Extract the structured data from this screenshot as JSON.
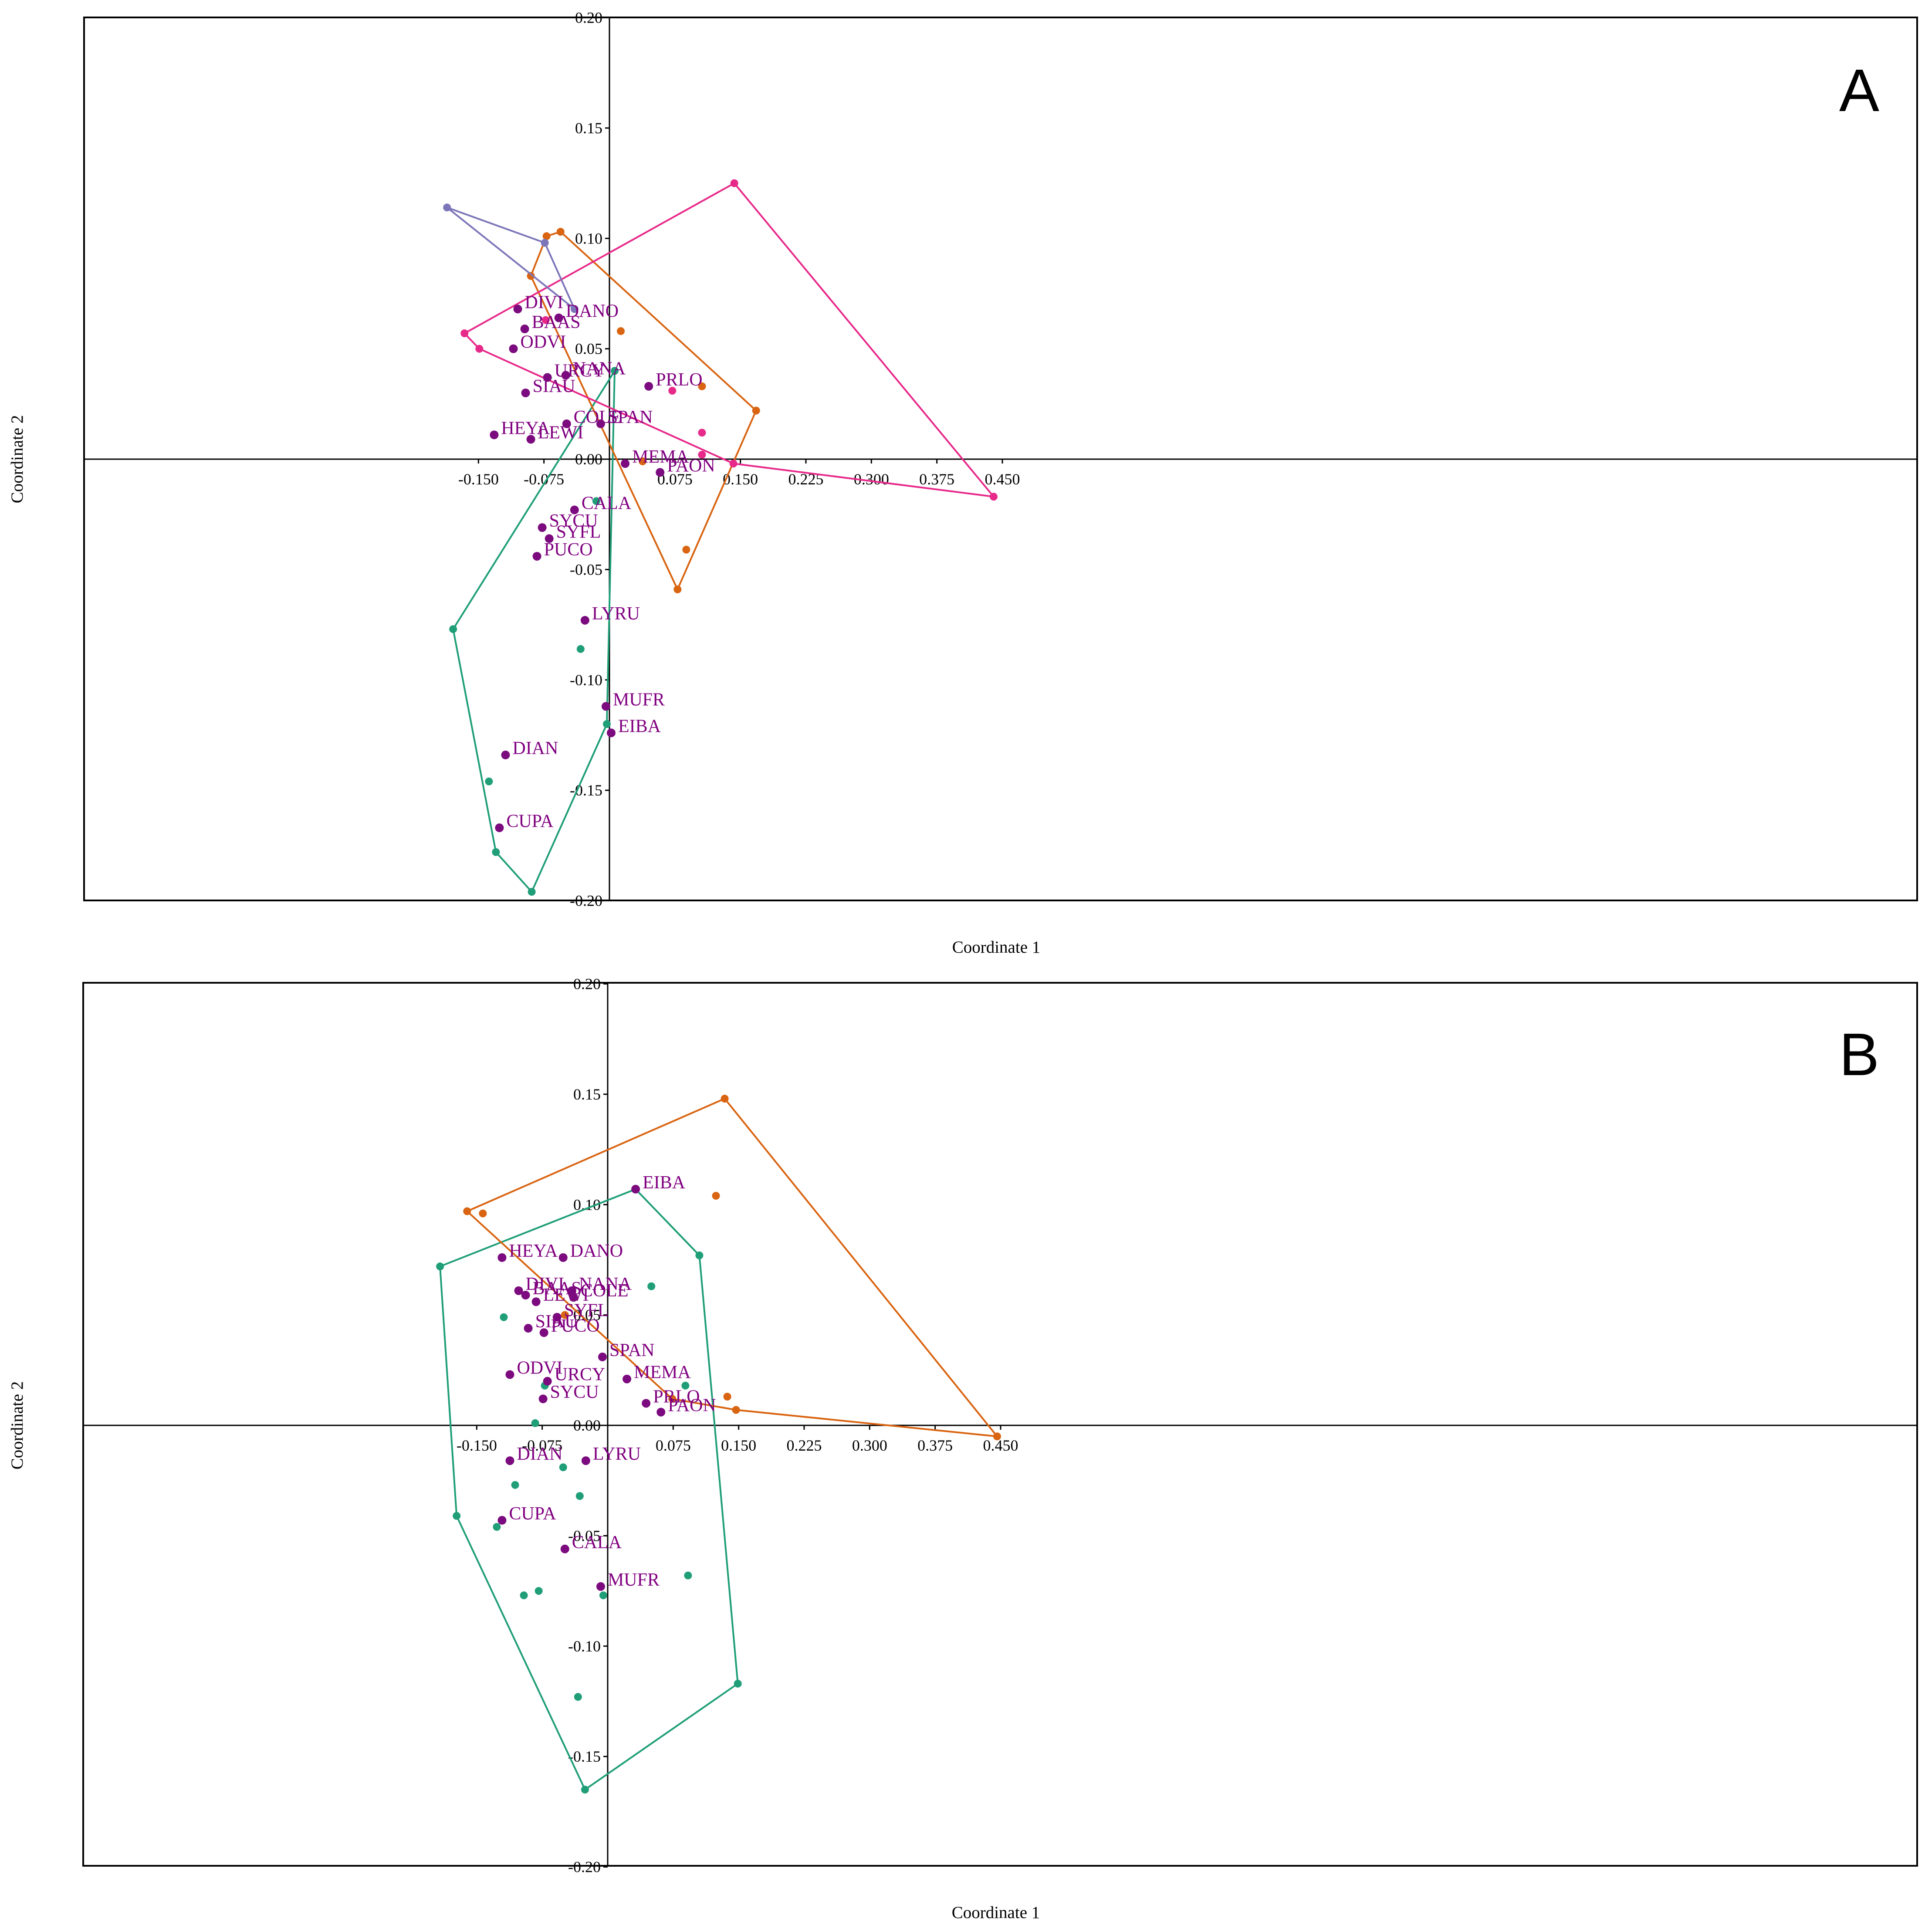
{
  "colors": {
    "species": "#7B0B7E",
    "species_label": "#800080",
    "green": "#1F9E77",
    "orange": "#D96411",
    "pink": "#E7298A",
    "lavender": "#7C76B9",
    "axis": "#000000"
  },
  "chart_data": [
    {
      "type": "scatter",
      "panel_label": "A",
      "xlabel": "Coordinate 1",
      "ylabel": "Coordinate 2",
      "xlim": [
        -0.2,
        0.5
      ],
      "ylim": [
        -0.2,
        0.2
      ],
      "x_ticks": [
        -0.15,
        -0.075,
        0.075,
        0.15,
        0.225,
        0.3,
        0.375,
        0.45
      ],
      "x_tick_labels": [
        "-0.150",
        "-0.075",
        "0.075",
        "0.150",
        "0.225",
        "0.300",
        "0.375",
        "0.450"
      ],
      "y_ticks": [
        -0.2,
        -0.15,
        -0.1,
        -0.05,
        0,
        0.05,
        0.1,
        0.15,
        0.2
      ],
      "y_tick_labels": [
        "-0.20",
        "-0.15",
        "-0.10",
        "-0.05",
        "0.00",
        "0.05",
        "0.10",
        "0.15",
        "0.20"
      ],
      "grid": false,
      "labeled_points": [
        {
          "label": "DIVI",
          "x": -0.105,
          "y": 0.068
        },
        {
          "label": "BAAS",
          "x": -0.097,
          "y": 0.059
        },
        {
          "label": "ODVI",
          "x": -0.11,
          "y": 0.05
        },
        {
          "label": "DANO",
          "x": -0.058,
          "y": 0.064
        },
        {
          "label": "URCY",
          "x": -0.071,
          "y": 0.037
        },
        {
          "label": "NANA",
          "x": -0.05,
          "y": 0.038
        },
        {
          "label": "SIAU",
          "x": -0.096,
          "y": 0.03
        },
        {
          "label": "HEYA",
          "x": -0.132,
          "y": 0.011
        },
        {
          "label": "LEWI",
          "x": -0.09,
          "y": 0.009
        },
        {
          "label": "COLE",
          "x": -0.049,
          "y": 0.016
        },
        {
          "label": "SPAN",
          "x": -0.01,
          "y": 0.016
        },
        {
          "label": "MEMA",
          "x": 0.018,
          "y": -0.002
        },
        {
          "label": "PRLO",
          "x": 0.045,
          "y": 0.033
        },
        {
          "label": "PAON",
          "x": 0.058,
          "y": -0.006
        },
        {
          "label": "CALA",
          "x": -0.04,
          "y": -0.023
        },
        {
          "label": "SYCU",
          "x": -0.077,
          "y": -0.031
        },
        {
          "label": "SYFL",
          "x": -0.069,
          "y": -0.036
        },
        {
          "label": "PUCO",
          "x": -0.083,
          "y": -0.044
        },
        {
          "label": "LYRU",
          "x": -0.028,
          "y": -0.073
        },
        {
          "label": "MUFR",
          "x": -0.004,
          "y": -0.112
        },
        {
          "label": "EIBA",
          "x": 0.002,
          "y": -0.124
        },
        {
          "label": "DIAN",
          "x": -0.119,
          "y": -0.134
        },
        {
          "label": "CUPA",
          "x": -0.126,
          "y": -0.167
        }
      ],
      "series": [
        {
          "color_key": "green",
          "hull": [
            [
              0.006,
              0.04
            ],
            [
              -0.003,
              -0.12
            ],
            [
              -0.089,
              -0.196
            ],
            [
              -0.13,
              -0.178
            ],
            [
              -0.179,
              -0.077
            ]
          ],
          "points": [
            [
              0.006,
              0.04
            ],
            [
              -0.015,
              -0.019
            ],
            [
              -0.033,
              -0.086
            ],
            [
              -0.003,
              -0.12
            ],
            [
              -0.089,
              -0.196
            ],
            [
              -0.13,
              -0.178
            ],
            [
              -0.138,
              -0.146
            ],
            [
              -0.179,
              -0.077
            ]
          ]
        },
        {
          "color_key": "orange",
          "hull": [
            [
              -0.072,
              0.101
            ],
            [
              -0.056,
              0.103
            ],
            [
              0.168,
              0.022
            ],
            [
              0.078,
              -0.059
            ],
            [
              -0.09,
              0.083
            ]
          ],
          "points": [
            [
              -0.072,
              0.101
            ],
            [
              -0.056,
              0.103
            ],
            [
              0.013,
              0.058
            ],
            [
              0.106,
              0.033
            ],
            [
              0.168,
              0.022
            ],
            [
              0.088,
              -0.041
            ],
            [
              0.078,
              -0.059
            ],
            [
              -0.09,
              0.083
            ],
            [
              0.038,
              -0.001
            ]
          ]
        },
        {
          "color_key": "pink",
          "hull": [
            [
              0.143,
              0.125
            ],
            [
              0.44,
              -0.017
            ],
            [
              0.142,
              -0.002
            ],
            [
              -0.149,
              0.05
            ],
            [
              -0.166,
              0.057
            ]
          ],
          "points": [
            [
              0.143,
              0.125
            ],
            [
              0.44,
              -0.017
            ],
            [
              0.142,
              -0.002
            ],
            [
              0.106,
              0.002
            ],
            [
              0.106,
              0.012
            ],
            [
              0.072,
              0.031
            ],
            [
              -0.073,
              0.063
            ],
            [
              -0.149,
              0.05
            ],
            [
              -0.166,
              0.057
            ]
          ]
        },
        {
          "color_key": "lavender",
          "hull": [
            [
              -0.186,
              0.114
            ],
            [
              -0.074,
              0.098
            ],
            [
              -0.04,
              0.068
            ]
          ],
          "points": [
            [
              -0.186,
              0.114
            ],
            [
              -0.074,
              0.098
            ],
            [
              -0.04,
              0.068
            ]
          ]
        }
      ]
    },
    {
      "type": "scatter",
      "panel_label": "B",
      "xlabel": "Coordinate 1",
      "ylabel": "Coordinate 2",
      "xlim": [
        -0.2,
        0.5
      ],
      "ylim": [
        -0.2,
        0.2
      ],
      "x_ticks": [
        -0.15,
        -0.075,
        0.075,
        0.15,
        0.225,
        0.3,
        0.375,
        0.45
      ],
      "x_tick_labels": [
        "-0.150",
        "-0.075",
        "0.075",
        "0.150",
        "0.225",
        "0.300",
        "0.375",
        "0.450"
      ],
      "y_ticks": [
        -0.2,
        -0.15,
        -0.1,
        -0.05,
        0,
        0.05,
        0.1,
        0.15,
        0.2
      ],
      "y_tick_labels": [
        "-0.20",
        "-0.15",
        "-0.10",
        "-0.05",
        "0.00",
        "0.05",
        "0.10",
        "0.15",
        "0.20"
      ],
      "grid": false,
      "labeled_points": [
        {
          "label": "EIBA",
          "x": 0.032,
          "y": 0.107
        },
        {
          "label": "HEYA",
          "x": -0.121,
          "y": 0.076
        },
        {
          "label": "DANO",
          "x": -0.051,
          "y": 0.076
        },
        {
          "label": "BAAS",
          "x": -0.094,
          "y": 0.059
        },
        {
          "label": "DIVI",
          "x": -0.102,
          "y": 0.061
        },
        {
          "label": "NANA",
          "x": -0.041,
          "y": 0.061
        },
        {
          "label": "LEWI",
          "x": -0.082,
          "y": 0.056
        },
        {
          "label": "COLE",
          "x": -0.039,
          "y": 0.058
        },
        {
          "label": "SYFL",
          "x": -0.058,
          "y": 0.049
        },
        {
          "label": "SIAU",
          "x": -0.091,
          "y": 0.044
        },
        {
          "label": "PUCO",
          "x": -0.073,
          "y": 0.042
        },
        {
          "label": "ODVI",
          "x": -0.112,
          "y": 0.023
        },
        {
          "label": "URCY",
          "x": -0.069,
          "y": 0.02
        },
        {
          "label": "SYCU",
          "x": -0.074,
          "y": 0.012
        },
        {
          "label": "SPAN",
          "x": -0.006,
          "y": 0.031
        },
        {
          "label": "MEMA",
          "x": 0.022,
          "y": 0.021
        },
        {
          "label": "PRLO",
          "x": 0.044,
          "y": 0.01
        },
        {
          "label": "PAON",
          "x": 0.061,
          "y": 0.006
        },
        {
          "label": "DIAN",
          "x": -0.112,
          "y": -0.016
        },
        {
          "label": "LYRU",
          "x": -0.025,
          "y": -0.016
        },
        {
          "label": "CUPA",
          "x": -0.121,
          "y": -0.043
        },
        {
          "label": "CALA",
          "x": -0.049,
          "y": -0.056
        },
        {
          "label": "MUFR",
          "x": -0.008,
          "y": -0.073
        }
      ],
      "series": [
        {
          "color_key": "green",
          "hull": [
            [
              -0.192,
              0.072
            ],
            [
              0.032,
              0.107
            ],
            [
              0.105,
              0.077
            ],
            [
              0.149,
              -0.117
            ],
            [
              -0.026,
              -0.165
            ],
            [
              -0.173,
              -0.041
            ]
          ],
          "points": [
            [
              -0.192,
              0.072
            ],
            [
              0.032,
              0.107
            ],
            [
              0.105,
              0.077
            ],
            [
              0.149,
              -0.117
            ],
            [
              -0.026,
              -0.165
            ],
            [
              -0.173,
              -0.041
            ],
            [
              0.05,
              0.063
            ],
            [
              -0.119,
              0.049
            ],
            [
              0.089,
              0.018
            ],
            [
              -0.072,
              0.018
            ],
            [
              -0.083,
              0.001
            ],
            [
              -0.051,
              -0.019
            ],
            [
              -0.106,
              -0.027
            ],
            [
              -0.032,
              -0.032
            ],
            [
              -0.127,
              -0.046
            ],
            [
              -0.079,
              -0.075
            ],
            [
              -0.096,
              -0.077
            ],
            [
              -0.005,
              -0.077
            ],
            [
              0.092,
              -0.068
            ],
            [
              -0.034,
              -0.123
            ]
          ]
        },
        {
          "color_key": "orange",
          "hull": [
            [
              -0.161,
              0.097
            ],
            [
              0.134,
              0.148
            ],
            [
              0.446,
              -0.005
            ],
            [
              0.147,
              0.007
            ],
            [
              0.074,
              0.012
            ]
          ],
          "points": [
            [
              -0.161,
              0.097
            ],
            [
              -0.143,
              0.096
            ],
            [
              0.134,
              0.148
            ],
            [
              0.446,
              -0.005
            ],
            [
              0.147,
              0.007
            ],
            [
              0.074,
              0.012
            ],
            [
              0.124,
              0.104
            ],
            [
              0.137,
              0.013
            ],
            [
              -0.049,
              0.05
            ]
          ]
        }
      ]
    }
  ]
}
